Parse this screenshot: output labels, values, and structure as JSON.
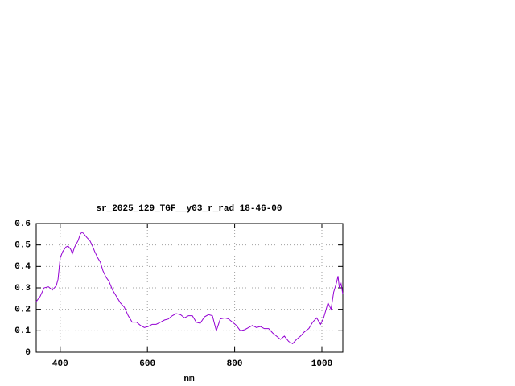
{
  "chart_data": {
    "type": "line",
    "title": "sr_2025_129_TGF__y03_r_rad 18-46-00",
    "x_label": "nm",
    "x": [
      345,
      354,
      363,
      373,
      382,
      391,
      395,
      400,
      406,
      413,
      418,
      424,
      428,
      433,
      441,
      446,
      450,
      455,
      461,
      468,
      473,
      479,
      486,
      492,
      498,
      505,
      512,
      520,
      529,
      538,
      547,
      556,
      565,
      575,
      584,
      593,
      602,
      611,
      620,
      630,
      639,
      648,
      657,
      666,
      676,
      685,
      694,
      703,
      712,
      721,
      731,
      740,
      749,
      758,
      767,
      777,
      786,
      795,
      804,
      813,
      823,
      832,
      841,
      850,
      859,
      868,
      878,
      887,
      896,
      905,
      914,
      924,
      933,
      942,
      951,
      960,
      970,
      979,
      988,
      997,
      1004,
      1014,
      1021,
      1027,
      1033,
      1037,
      1040,
      1044,
      1048
    ],
    "series": [
      {
        "color": "#9400d3",
        "values": [
          0.236,
          0.26,
          0.3,
          0.305,
          0.29,
          0.31,
          0.34,
          0.44,
          0.47,
          0.49,
          0.495,
          0.48,
          0.46,
          0.49,
          0.52,
          0.55,
          0.56,
          0.55,
          0.535,
          0.52,
          0.5,
          0.47,
          0.44,
          0.42,
          0.38,
          0.35,
          0.33,
          0.29,
          0.26,
          0.23,
          0.21,
          0.17,
          0.14,
          0.14,
          0.125,
          0.115,
          0.12,
          0.13,
          0.13,
          0.14,
          0.15,
          0.155,
          0.17,
          0.18,
          0.175,
          0.16,
          0.17,
          0.17,
          0.14,
          0.135,
          0.165,
          0.175,
          0.17,
          0.1,
          0.155,
          0.16,
          0.155,
          0.14,
          0.125,
          0.1,
          0.105,
          0.115,
          0.125,
          0.115,
          0.12,
          0.11,
          0.11,
          0.09,
          0.075,
          0.06,
          0.075,
          0.05,
          0.04,
          0.06,
          0.075,
          0.095,
          0.11,
          0.14,
          0.16,
          0.13,
          0.16,
          0.23,
          0.2,
          0.28,
          0.32,
          0.355,
          0.3,
          0.32,
          0.27
        ]
      }
    ],
    "xlim": [
      345,
      1048
    ],
    "xticks": [
      400,
      600,
      800,
      1000
    ],
    "ylim": [
      0,
      0.6
    ],
    "yticks": [
      0,
      0.1,
      0.2,
      0.3,
      0.4,
      0.5,
      0.6
    ],
    "grid": true
  }
}
